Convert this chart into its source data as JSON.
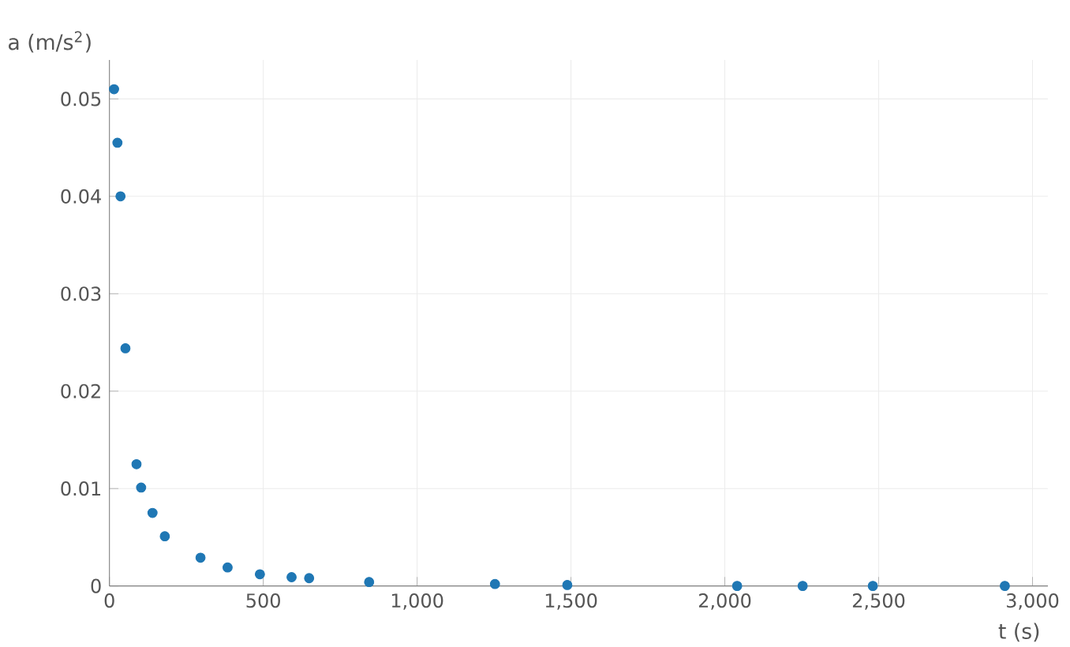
{
  "chart_data": {
    "type": "scatter",
    "xlabel": "t (s)",
    "ylabel": "a (m/s$^{2}$)",
    "x": [
      15,
      26,
      36,
      52,
      88,
      103,
      140,
      180,
      296,
      384,
      489,
      592,
      649,
      844,
      1253,
      1488,
      2040,
      2253,
      2481,
      2910
    ],
    "series": [
      {
        "color": "#1f77b4",
        "values": [
          0.051,
          0.0455,
          0.04,
          0.0244,
          0.0125,
          0.0101,
          0.0075,
          0.0051,
          0.0029,
          0.0019,
          0.0012,
          0.0009,
          0.0008,
          0.0004,
          0.0002,
          0.0001,
          0,
          0,
          0,
          0
        ]
      }
    ],
    "xlim": [
      0,
      3050
    ],
    "ylim": [
      0,
      0.054
    ],
    "xticks": [
      0,
      500,
      {
        "value": 1000,
        "label": "1,000"
      },
      {
        "value": 1500,
        "label": "1,500"
      },
      {
        "value": 2000,
        "label": "2,000"
      },
      {
        "value": 2500,
        "label": "2,500"
      },
      {
        "value": 3000,
        "label": "3,000"
      }
    ],
    "yticks": [
      0,
      0.01,
      0.02,
      0.03,
      0.04,
      0.05
    ],
    "grid": true,
    "marker": "circle"
  }
}
